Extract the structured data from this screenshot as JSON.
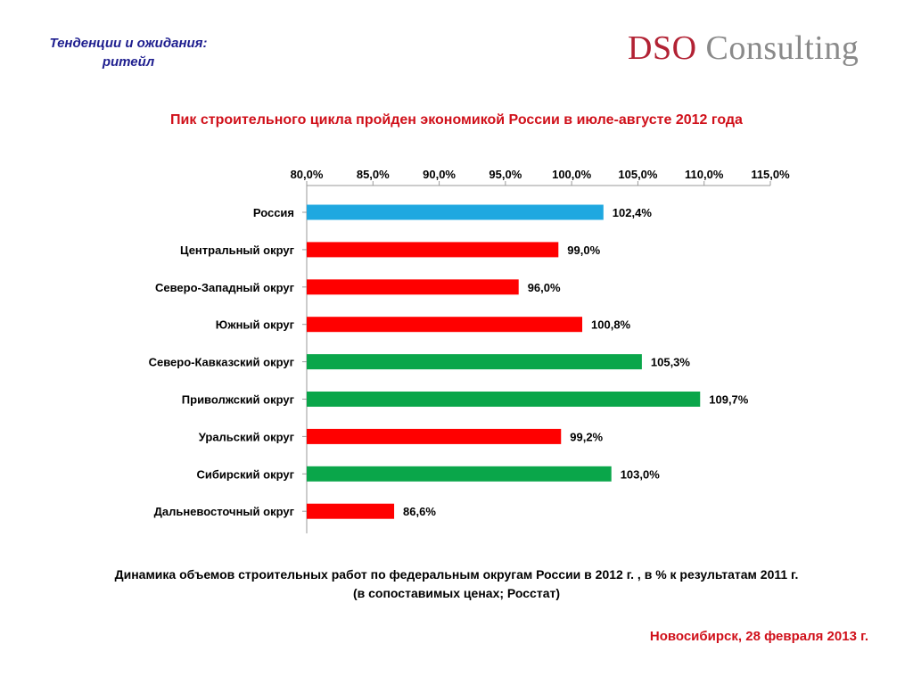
{
  "header": {
    "subtitle_line1": "Тенденции и ожидания:",
    "subtitle_line2": "ритейл",
    "logo_text": "DSO Consulting",
    "logo_part1": "DSO",
    "logo_part2": " Consulting"
  },
  "slide_title": "Пик строительного цикла пройден экономикой России в июле-августе 2012 года",
  "colors": {
    "title_red": "#d0101a",
    "header_blue": "#1f1f8f",
    "bar_blue": "#1fa8e0",
    "bar_red": "#ff0000",
    "bar_green": "#0aa64a"
  },
  "chart_data": {
    "type": "bar",
    "orientation": "horizontal",
    "xlim": [
      80,
      115
    ],
    "ticks": [
      "80,0%",
      "85,0%",
      "90,0%",
      "95,0%",
      "100,0%",
      "105,0%",
      "110,0%",
      "115,0%"
    ],
    "tick_values": [
      80,
      85,
      90,
      95,
      100,
      105,
      110,
      115
    ],
    "x_axis_position": "top",
    "grid": false,
    "categories": [
      "Россия",
      "Центральный округ",
      "Северо-Западный округ",
      "Южный округ",
      "Северо-Кавказский округ",
      "Приволжский округ",
      "Уральский округ",
      "Сибирский округ",
      "Дальневосточный округ"
    ],
    "values": [
      102.4,
      99.0,
      96.0,
      100.8,
      105.3,
      109.7,
      99.2,
      103.0,
      86.6
    ],
    "data_labels": [
      "102,4%",
      "99,0%",
      "96,0%",
      "100,8%",
      "105,3%",
      "109,7%",
      "99,2%",
      "103,0%",
      "86,6%"
    ],
    "bar_colors": [
      "#1fa8e0",
      "#ff0000",
      "#ff0000",
      "#ff0000",
      "#0aa64a",
      "#0aa64a",
      "#ff0000",
      "#0aa64a",
      "#ff0000"
    ]
  },
  "caption": {
    "line1": "Динамика объемов строительных работ по федеральным округам России в 2012 г. , в % к результатам 2011 г.",
    "line2": "(в сопоставимых ценах; Росстат)"
  },
  "footer": "Новосибирск, 28 февраля 2013 г."
}
